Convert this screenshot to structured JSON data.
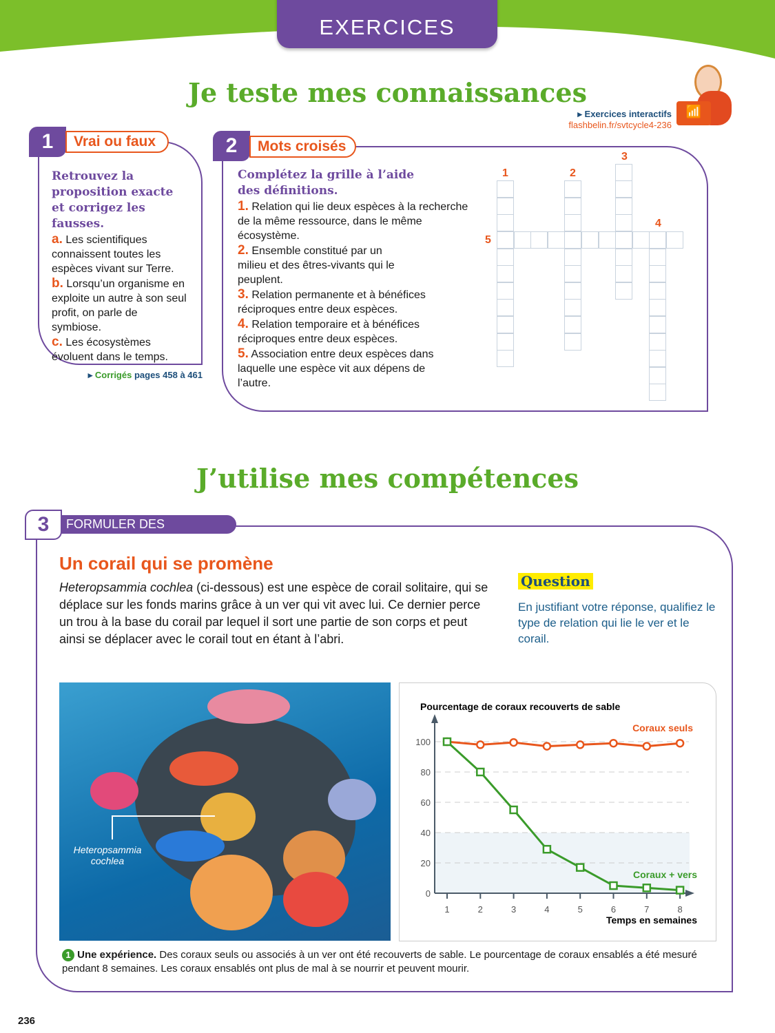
{
  "header": {
    "tab": "EXERCICES"
  },
  "section1": {
    "title": "Je teste mes connaissances",
    "interactive": {
      "label": "Exercices interactifs",
      "url": "flashbelin.fr/svtcycle4-236"
    }
  },
  "ex1": {
    "number": "1",
    "label": "Vrai ou faux",
    "instruction": "Retrouvez la proposition exacte et corrigez les fausses.",
    "items": [
      {
        "letter": "a.",
        "text": "Les scientifiques connaissent toutes les espèces vivant sur Terre."
      },
      {
        "letter": "b.",
        "text": "Lorsqu’un organisme en exploite un autre à son seul profit, on parle de symbiose."
      },
      {
        "letter": "c.",
        "text": "Les écosystèmes évoluent dans le temps."
      }
    ],
    "corriges": {
      "word": "Corrigés",
      "pages": "pages 458 à 461"
    }
  },
  "ex2": {
    "number": "2",
    "label": "Mots croisés",
    "instruction": "Complétez la grille à l’aide des définitions.",
    "items": [
      {
        "n": "1.",
        "text": "Relation qui lie deux espèces à la recherche de la même ressource, dans le même écosystème."
      },
      {
        "n": "2.",
        "text": "Ensemble constitué par un milieu et des êtres-vivants qui le peuplent."
      },
      {
        "n": "3.",
        "text": "Relation permanente et à bénéfices réciproques entre deux espèces."
      },
      {
        "n": "4.",
        "text": "Relation temporaire et à bénéfices réciproques entre deux espèces."
      },
      {
        "n": "5.",
        "text": "Association entre deux espèces dans laquelle une espèce vit aux dépens de l’autre."
      }
    ],
    "grid_numbers": [
      "1",
      "2",
      "3",
      "4",
      "5"
    ]
  },
  "section2": {
    "title": "J’utilise mes compétences"
  },
  "ex3": {
    "number": "3",
    "label": "FORMULER DES HYPOTHÈSES",
    "title": "Un corail qui se promène",
    "species": "Heteropsammia cochlea",
    "text": " (ci-dessous) est une espèce de corail solitaire, qui se déplace sur les fonds marins grâce à un ver qui vit avec lui. Ce dernier perce un trou à la base du corail par lequel il sort une partie de son corps et peut ainsi se déplacer avec le corail tout en étant à l’abri.",
    "question_label": "Question",
    "question": "En justifiant votre réponse, qualifiez le type de relation qui lie le ver et le corail.",
    "image_label": "Heteropsammia cochlea",
    "caption": {
      "num": "1",
      "bold": "Une expérience.",
      "text": " Des coraux seuls ou associés à un ver ont été recouverts de sable. Le pourcentage de coraux ensablés a été mesuré pendant 8 semaines. Les coraux ensablés ont plus de mal à se nourrir et peuvent mourir."
    }
  },
  "chart_data": {
    "type": "line",
    "title": "Pourcentage de coraux recouverts de sable",
    "xlabel": "Temps en semaines",
    "ylabel": "",
    "x": [
      1,
      2,
      3,
      4,
      5,
      6,
      7,
      8
    ],
    "xlim": [
      1,
      8
    ],
    "ylim": [
      0,
      100
    ],
    "yticks": [
      0,
      20,
      40,
      60,
      80,
      100
    ],
    "grid": true,
    "series": [
      {
        "name": "Coraux seuls",
        "color": "#e8561c",
        "marker": "circle",
        "values": [
          100,
          98,
          99.5,
          97,
          98,
          99,
          97,
          99
        ]
      },
      {
        "name": "Coraux + vers",
        "color": "#3a9b2a",
        "marker": "square",
        "values": [
          100,
          80,
          55,
          29,
          17,
          5,
          3.5,
          2
        ]
      }
    ]
  },
  "footer": {
    "page": "236"
  },
  "colors": {
    "purple": "#6e4a9e",
    "orange": "#e8561c",
    "green": "#5aab2a",
    "blue": "#1c4e7a"
  }
}
